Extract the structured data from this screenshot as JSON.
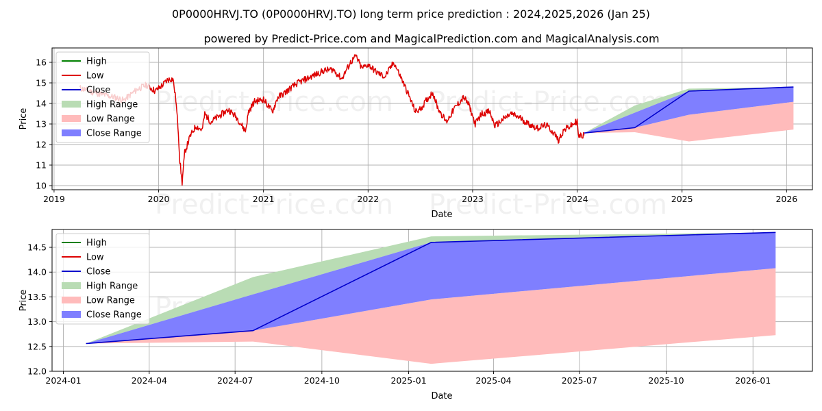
{
  "title_line1": "0P0000HRVJ.TO (0P0000HRVJ.TO) long term price prediction : 2024,2025,2026 (Jan 25)",
  "title_line2": "powered by Predict-Price.com and MagicalPrediction.com and MagicalAnalysis.com",
  "watermark": "Predict-Price.com",
  "colors": {
    "high": "#008000",
    "low": "#dd0000",
    "close": "#0000cc",
    "high_range": "#b9dcb4",
    "low_range": "#ffbbbb",
    "close_range": "#7f7fff",
    "grid": "#b0b0b0"
  },
  "chart_data": [
    {
      "type": "line",
      "xlabel": "Date",
      "ylabel": "Price",
      "x_ticks": [
        "2019",
        "2020",
        "2021",
        "2022",
        "2023",
        "2024",
        "2025",
        "2026"
      ],
      "y_ticks": [
        "10",
        "11",
        "12",
        "13",
        "14",
        "15",
        "16"
      ],
      "xlim": [
        "2018-12-25",
        "2026-04-01"
      ],
      "ylim": [
        9.8,
        16.7
      ],
      "grid": true,
      "legend": {
        "position": "upper-left",
        "entries": [
          "High",
          "Low",
          "Close",
          "High Range",
          "Low Range",
          "Close Range"
        ]
      },
      "history_low_series": {
        "name": "Low",
        "points": [
          [
            "2019-04-01",
            14.75
          ],
          [
            "2019-05-15",
            14.55
          ],
          [
            "2019-06-15",
            14.45
          ],
          [
            "2019-08-01",
            14.3
          ],
          [
            "2019-09-01",
            14.15
          ],
          [
            "2019-10-01",
            14.5
          ],
          [
            "2019-10-20",
            14.7
          ],
          [
            "2019-11-20",
            14.9
          ],
          [
            "2019-12-20",
            14.6
          ],
          [
            "2020-01-15",
            14.9
          ],
          [
            "2020-02-01",
            15.15
          ],
          [
            "2020-02-20",
            15.2
          ],
          [
            "2020-03-01",
            14.2
          ],
          [
            "2020-03-10",
            12.6
          ],
          [
            "2020-03-15",
            11.2
          ],
          [
            "2020-03-23",
            10.15
          ],
          [
            "2020-04-01",
            11.6
          ],
          [
            "2020-04-20",
            12.4
          ],
          [
            "2020-05-10",
            12.9
          ],
          [
            "2020-06-01",
            12.7
          ],
          [
            "2020-06-10",
            13.5
          ],
          [
            "2020-07-01",
            13.1
          ],
          [
            "2020-08-01",
            13.4
          ],
          [
            "2020-09-01",
            13.7
          ],
          [
            "2020-10-01",
            13.3
          ],
          [
            "2020-10-30",
            12.65
          ],
          [
            "2020-11-10",
            13.6
          ],
          [
            "2020-12-01",
            14.1
          ],
          [
            "2021-01-01",
            14.2
          ],
          [
            "2021-02-01",
            13.6
          ],
          [
            "2021-02-20",
            14.3
          ],
          [
            "2021-03-15",
            14.5
          ],
          [
            "2021-04-01",
            14.7
          ],
          [
            "2021-05-01",
            15.0
          ],
          [
            "2021-06-01",
            15.2
          ],
          [
            "2021-07-01",
            15.4
          ],
          [
            "2021-08-01",
            15.6
          ],
          [
            "2021-09-01",
            15.65
          ],
          [
            "2021-10-01",
            15.2
          ],
          [
            "2021-11-01",
            16.0
          ],
          [
            "2021-11-20",
            16.3
          ],
          [
            "2021-12-10",
            15.7
          ],
          [
            "2022-01-01",
            15.9
          ],
          [
            "2022-02-01",
            15.5
          ],
          [
            "2022-03-01",
            15.3
          ],
          [
            "2022-04-01",
            16.0
          ],
          [
            "2022-05-01",
            15.1
          ],
          [
            "2022-05-20",
            14.5
          ],
          [
            "2022-06-15",
            13.6
          ],
          [
            "2022-07-01",
            13.7
          ],
          [
            "2022-08-01",
            14.3
          ],
          [
            "2022-08-15",
            14.55
          ],
          [
            "2022-09-01",
            13.8
          ],
          [
            "2022-10-01",
            13.1
          ],
          [
            "2022-11-01",
            13.8
          ],
          [
            "2022-12-01",
            14.3
          ],
          [
            "2022-12-20",
            13.9
          ],
          [
            "2023-01-10",
            13.0
          ],
          [
            "2023-02-01",
            13.5
          ],
          [
            "2023-03-01",
            13.6
          ],
          [
            "2023-03-20",
            12.9
          ],
          [
            "2023-04-15",
            13.2
          ],
          [
            "2023-05-15",
            13.5
          ],
          [
            "2023-06-15",
            13.3
          ],
          [
            "2023-07-15",
            13.0
          ],
          [
            "2023-08-15",
            12.8
          ],
          [
            "2023-09-15",
            12.95
          ],
          [
            "2023-10-15",
            12.5
          ],
          [
            "2023-10-27",
            12.2
          ],
          [
            "2023-11-15",
            12.7
          ],
          [
            "2023-12-15",
            12.95
          ],
          [
            "2024-01-01",
            13.15
          ],
          [
            "2024-01-05",
            12.4
          ],
          [
            "2024-01-25",
            12.45
          ]
        ]
      },
      "forecast": {
        "x": [
          "2024-01-25",
          "2024-07-20",
          "2025-01-25",
          "2026-01-25"
        ],
        "close": [
          12.56,
          12.82,
          14.6,
          14.8
        ],
        "high_range_upper": [
          12.56,
          13.9,
          14.72,
          14.8
        ],
        "close_range_upper": [
          12.56,
          13.55,
          14.6,
          14.8
        ],
        "close_range_lower": [
          12.56,
          12.82,
          13.45,
          14.08
        ],
        "low_range_lower": [
          12.56,
          12.6,
          12.15,
          12.73
        ]
      }
    },
    {
      "type": "line",
      "xlabel": "Date",
      "ylabel": "Price",
      "x_ticks": [
        "2024-01",
        "2024-04",
        "2024-07",
        "2024-10",
        "2025-01",
        "2025-04",
        "2025-07",
        "2025-10",
        "2026-01"
      ],
      "y_ticks": [
        "12.0",
        "12.5",
        "13.0",
        "13.5",
        "14.0",
        "14.5"
      ],
      "xlim": [
        "2023-12-20",
        "2026-03-05"
      ],
      "ylim": [
        12.0,
        14.86
      ],
      "grid": true,
      "legend": {
        "position": "upper-left",
        "entries": [
          "High",
          "Low",
          "Close",
          "High Range",
          "Low Range",
          "Close Range"
        ]
      },
      "forecast": {
        "x": [
          "2024-01-25",
          "2024-07-20",
          "2025-01-25",
          "2026-01-25"
        ],
        "close": [
          12.56,
          12.82,
          14.6,
          14.8
        ],
        "high_range_upper": [
          12.56,
          13.9,
          14.72,
          14.8
        ],
        "close_range_upper": [
          12.56,
          13.55,
          14.6,
          14.8
        ],
        "close_range_lower": [
          12.56,
          12.82,
          13.45,
          14.08
        ],
        "low_range_lower": [
          12.56,
          12.6,
          12.15,
          12.73
        ]
      }
    }
  ]
}
